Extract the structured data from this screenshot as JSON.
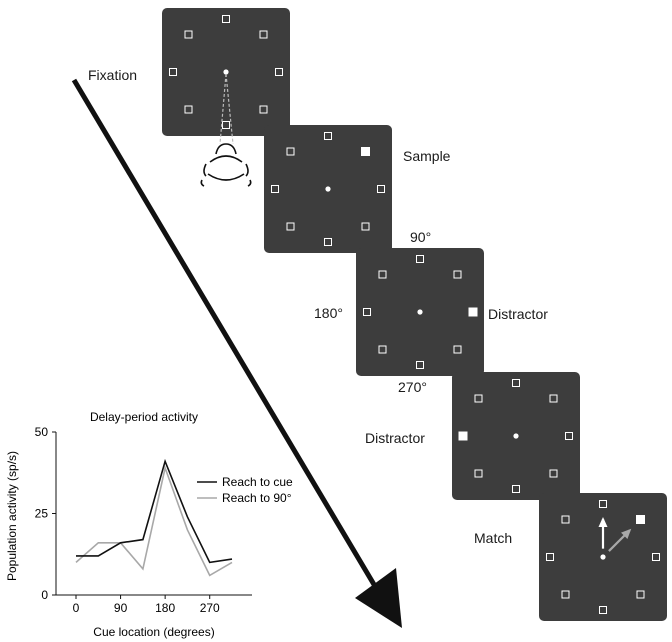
{
  "labels": {
    "fixation": "Fixation",
    "sample": "Sample",
    "distractor_1": "Distractor",
    "distractor_2": "Distractor",
    "match": "Match",
    "deg_90": "90°",
    "deg_180": "180°",
    "deg_270": "270°"
  },
  "panels": [
    {
      "name": "fixation",
      "filled_target": null,
      "arrows": false
    },
    {
      "name": "sample",
      "filled_target": "45°",
      "arrows": false
    },
    {
      "name": "distractor-1",
      "filled_target": "0°",
      "arrows": false
    },
    {
      "name": "distractor-2",
      "filled_target": "180°",
      "arrows": false
    },
    {
      "name": "match",
      "filled_target": "45°",
      "arrows": true
    }
  ],
  "colors": {
    "panel": "#3d3d3d",
    "target": "#ffffff",
    "arrow_cue": "#ffffff",
    "arrow_90": "#a8a8a8",
    "series_cue": "#111111",
    "series_90": "#a8a8a8"
  },
  "chart_data": {
    "type": "line",
    "title": "Delay-period activity",
    "xlabel": "Cue location (degrees)",
    "ylabel": "Population activity (sp/s)",
    "x": [
      0,
      45,
      90,
      135,
      180,
      225,
      270,
      315
    ],
    "xticks": [
      "0",
      "90",
      "180",
      "270"
    ],
    "xtick_values": [
      0,
      90,
      180,
      270
    ],
    "yticks": [
      "0",
      "25",
      "50"
    ],
    "ytick_values": [
      0,
      25,
      50
    ],
    "ylim": [
      0,
      50
    ],
    "xlim": [
      0,
      315
    ],
    "legend_position": "top-right",
    "series": [
      {
        "name": "Reach to cue",
        "values": [
          12,
          12,
          16,
          17,
          41,
          24,
          10,
          11
        ]
      },
      {
        "name": "Reach to 90°",
        "values": [
          10,
          16,
          16,
          8,
          39,
          20,
          6,
          10
        ]
      }
    ]
  }
}
